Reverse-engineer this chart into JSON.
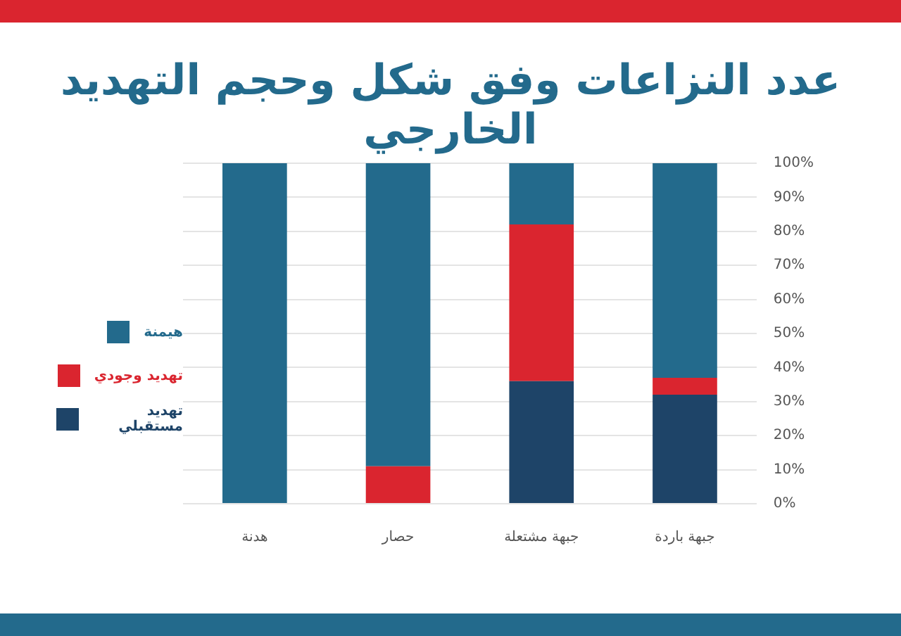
{
  "chart_data": {
    "type": "bar",
    "title": "عدد النزاعات وفق شكل وحجم التهديد الخارجي",
    "stacked": true,
    "categories": [
      "هدنة",
      "حصار",
      "جبهة مشتعلة",
      "جبهة باردة"
    ],
    "series": [
      {
        "name": "تهديد مستقبلي",
        "color": "#1e4468",
        "values": [
          0,
          0,
          36,
          32
        ]
      },
      {
        "name": "تهديد وجودي",
        "color": "#da252f",
        "values": [
          0,
          11,
          46,
          5
        ]
      },
      {
        "name": "هيمنة",
        "color": "#236a8c",
        "values": [
          100,
          89,
          18,
          63
        ]
      }
    ],
    "ylim": [
      0,
      100
    ],
    "yticks": [
      {
        "value": 0,
        "label": "0%"
      },
      {
        "value": 10,
        "label": "10%"
      },
      {
        "value": 20,
        "label": "20%"
      },
      {
        "value": 30,
        "label": "30%"
      },
      {
        "value": 40,
        "label": "40%"
      },
      {
        "value": 50,
        "label": "50%"
      },
      {
        "value": 60,
        "label": "60%"
      },
      {
        "value": 70,
        "label": "70%"
      },
      {
        "value": 80,
        "label": "80%"
      },
      {
        "value": 90,
        "label": "90%"
      },
      {
        "value": 100,
        "label": "100%"
      }
    ],
    "grid": "y",
    "legend": "left"
  }
}
